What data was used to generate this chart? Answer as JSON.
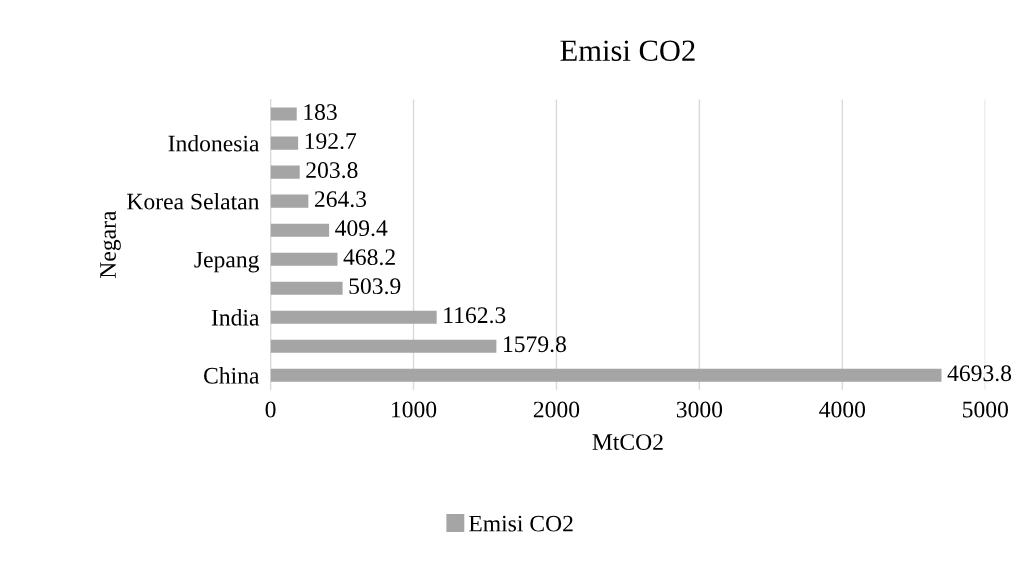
{
  "chart_data": {
    "type": "bar",
    "orientation": "horizontal",
    "title": "Emisi CO2",
    "xlabel": "MtCO2",
    "ylabel": "Negara",
    "categories": [
      null,
      "Indonesia",
      null,
      "Korea Selatan",
      null,
      "Jepang",
      null,
      "India",
      null,
      "China"
    ],
    "series": [
      {
        "name": "Emisi CO2",
        "color": "#a5a5a5",
        "values": [
          183,
          192.7,
          203.8,
          264.3,
          409.4,
          468.2,
          503.9,
          1162.3,
          1579.8,
          4693.8
        ]
      }
    ],
    "xlim": [
      0,
      5000
    ],
    "xticks": [
      0,
      1000,
      2000,
      3000,
      4000,
      5000
    ],
    "grid": "x",
    "legend": "bottom",
    "data_labels": true
  }
}
